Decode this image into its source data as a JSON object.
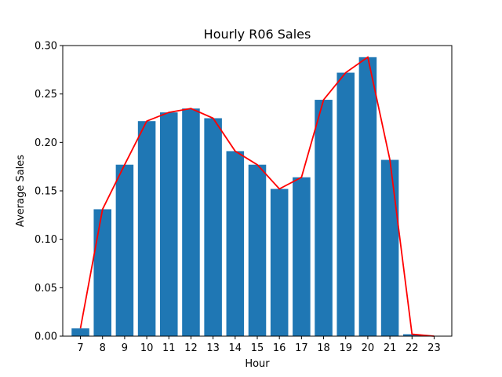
{
  "chart_data": {
    "type": "bar",
    "title": "Hourly R06 Sales",
    "xlabel": "Hour",
    "ylabel": "Average Sales",
    "categories": [
      "7",
      "8",
      "9",
      "10",
      "11",
      "12",
      "13",
      "14",
      "15",
      "16",
      "17",
      "18",
      "19",
      "20",
      "21",
      "22",
      "23"
    ],
    "values": [
      0.008,
      0.131,
      0.177,
      0.222,
      0.231,
      0.235,
      0.225,
      0.191,
      0.177,
      0.152,
      0.164,
      0.244,
      0.272,
      0.288,
      0.182,
      0.002,
      0.0
    ],
    "line_overlay": {
      "values": [
        0.008,
        0.131,
        0.177,
        0.222,
        0.231,
        0.235,
        0.225,
        0.191,
        0.177,
        0.152,
        0.164,
        0.244,
        0.272,
        0.288,
        0.182,
        0.002,
        0.0
      ],
      "color": "#ff0000"
    },
    "ylim": [
      0,
      0.3
    ],
    "yticks": [
      "0.00",
      "0.05",
      "0.10",
      "0.15",
      "0.20",
      "0.25",
      "0.30"
    ],
    "bar_color": "#1f77b4",
    "grid": false,
    "legend": "none"
  }
}
